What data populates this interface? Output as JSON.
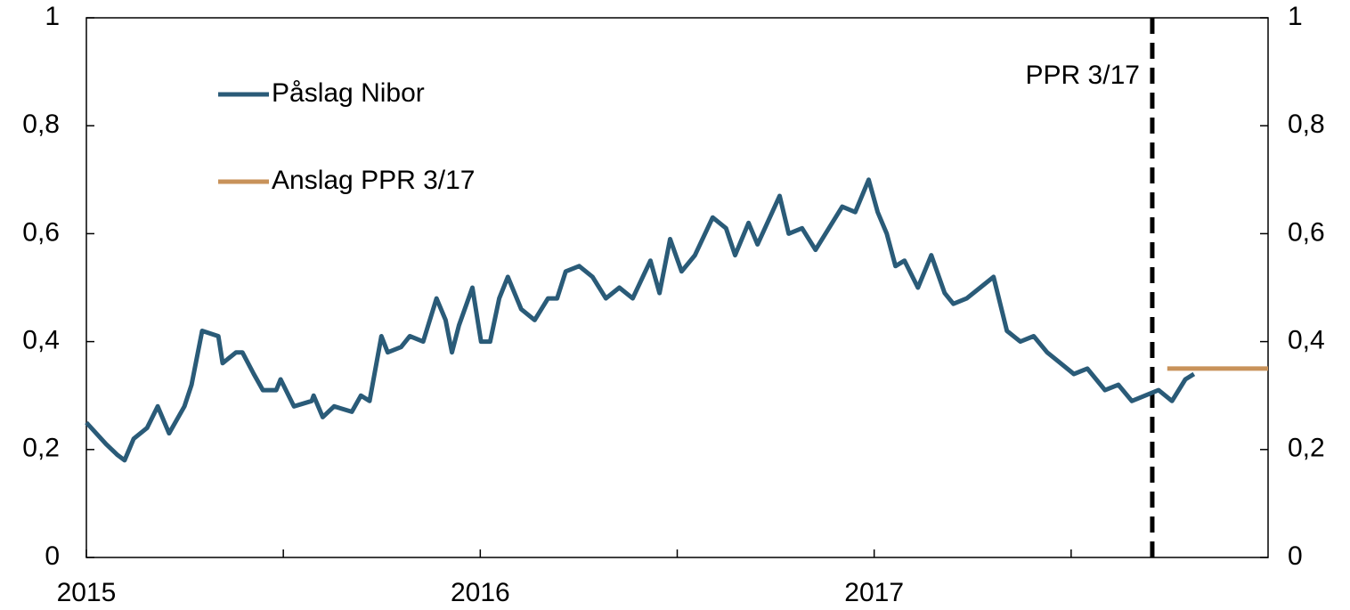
{
  "chart_data": {
    "type": "line",
    "legend": "upper left",
    "xlim": [
      2015,
      2018
    ],
    "xticks": [
      2015,
      2016,
      2017
    ],
    "xminorticks": [
      2015.5,
      2016.5,
      2017.5
    ],
    "ylim": [
      0,
      1
    ],
    "yticks": [
      0,
      {
        "value": 0.2,
        "label": "0,2"
      },
      {
        "value": 0.4,
        "label": "0,4"
      },
      {
        "value": 0.6,
        "label": "0,6"
      },
      {
        "value": 0.8,
        "label": "0,8"
      },
      1
    ],
    "y2lim": [
      0,
      1
    ],
    "y2ticks": [
      0,
      {
        "value": 0.2,
        "label": "0,2"
      },
      {
        "value": 0.4,
        "label": "0,4"
      },
      {
        "value": 0.6,
        "label": "0,6"
      },
      {
        "value": 0.8,
        "label": "0,8"
      },
      1
    ],
    "annotations": [
      {
        "text": "PPR 3/17",
        "x": 2017.706
      }
    ],
    "series": [
      {
        "name": "Påslag Nibor",
        "color": "#2a5b78",
        "x": [
          2015.0,
          2015.05,
          2015.079,
          2015.097,
          2015.12,
          2015.154,
          2015.181,
          2015.21,
          2015.249,
          2015.267,
          2015.294,
          2015.335,
          2015.346,
          2015.38,
          2015.396,
          2015.425,
          2015.448,
          2015.482,
          2015.493,
          2015.527,
          2015.572,
          2015.577,
          2015.6,
          2015.629,
          2015.674,
          2015.697,
          2015.719,
          2015.749,
          2015.765,
          2015.799,
          2015.821,
          2015.855,
          2015.889,
          2015.912,
          2015.928,
          2015.946,
          2015.98,
          2016.002,
          2016.025,
          2016.048,
          2016.07,
          2016.104,
          2016.138,
          2016.172,
          2016.195,
          2016.217,
          2016.251,
          2016.285,
          2016.319,
          2016.353,
          2016.387,
          2016.432,
          2016.455,
          2016.482,
          2016.511,
          2016.545,
          2016.59,
          2016.624,
          2016.647,
          2016.681,
          2016.704,
          2016.76,
          2016.783,
          2016.817,
          2016.851,
          2016.885,
          2016.919,
          2016.952,
          2016.986,
          2017.009,
          2017.032,
          2017.054,
          2017.077,
          2017.111,
          2017.145,
          2017.179,
          2017.201,
          2017.235,
          2017.269,
          2017.303,
          2017.337,
          2017.371,
          2017.405,
          2017.439,
          2017.473,
          2017.507,
          2017.541,
          2017.586,
          2017.62,
          2017.654,
          2017.688,
          2017.722,
          2017.756,
          2017.79,
          2017.812
        ],
        "values": [
          0.25,
          0.21,
          0.19,
          0.18,
          0.22,
          0.24,
          0.28,
          0.23,
          0.28,
          0.32,
          0.42,
          0.41,
          0.36,
          0.38,
          0.38,
          0.34,
          0.31,
          0.31,
          0.33,
          0.28,
          0.29,
          0.3,
          0.26,
          0.28,
          0.27,
          0.3,
          0.29,
          0.41,
          0.38,
          0.39,
          0.41,
          0.4,
          0.48,
          0.44,
          0.38,
          0.43,
          0.5,
          0.4,
          0.4,
          0.48,
          0.52,
          0.46,
          0.44,
          0.48,
          0.48,
          0.53,
          0.54,
          0.52,
          0.48,
          0.5,
          0.48,
          0.55,
          0.49,
          0.59,
          0.53,
          0.56,
          0.63,
          0.61,
          0.56,
          0.62,
          0.58,
          0.67,
          0.6,
          0.61,
          0.57,
          0.61,
          0.65,
          0.64,
          0.7,
          0.64,
          0.6,
          0.54,
          0.55,
          0.5,
          0.56,
          0.49,
          0.47,
          0.48,
          0.5,
          0.52,
          0.42,
          0.4,
          0.41,
          0.38,
          0.36,
          0.34,
          0.35,
          0.31,
          0.32,
          0.29,
          0.3,
          0.31,
          0.29,
          0.33,
          0.34
        ]
      },
      {
        "name": "Anslag PPR 3/17",
        "color": "#c8925a",
        "x": [
          2017.744,
          2018.0
        ],
        "values": [
          0.35,
          0.35
        ]
      }
    ]
  }
}
